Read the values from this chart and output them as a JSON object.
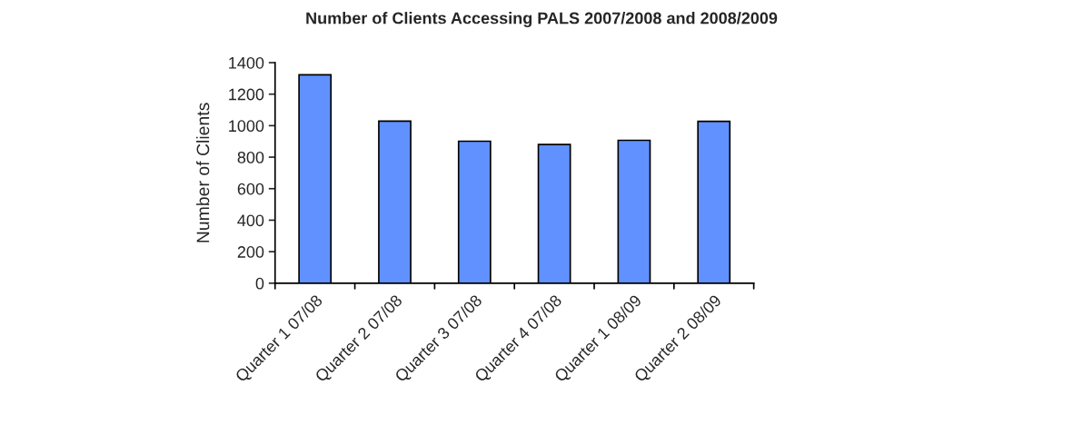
{
  "chart_data": {
    "type": "bar",
    "title": "Number of Clients Accessing PALS 2007/2008 and 2008/2009",
    "ylabel": "Number of Clients",
    "categories": [
      "Quarter 1 07/08",
      "Quarter 2 07/08",
      "Quarter 3 07/08",
      "Quarter 4 07/08",
      "Quarter 1 08/09",
      "Quarter 2 08/09"
    ],
    "values": [
      1323,
      1029,
      901,
      880,
      907,
      1027
    ],
    "color": "#6191ff",
    "ylim": [
      0,
      1400
    ],
    "yticks": [
      0,
      200,
      400,
      600,
      800,
      1000,
      1200,
      1400
    ],
    "grid": false,
    "legend": false
  }
}
